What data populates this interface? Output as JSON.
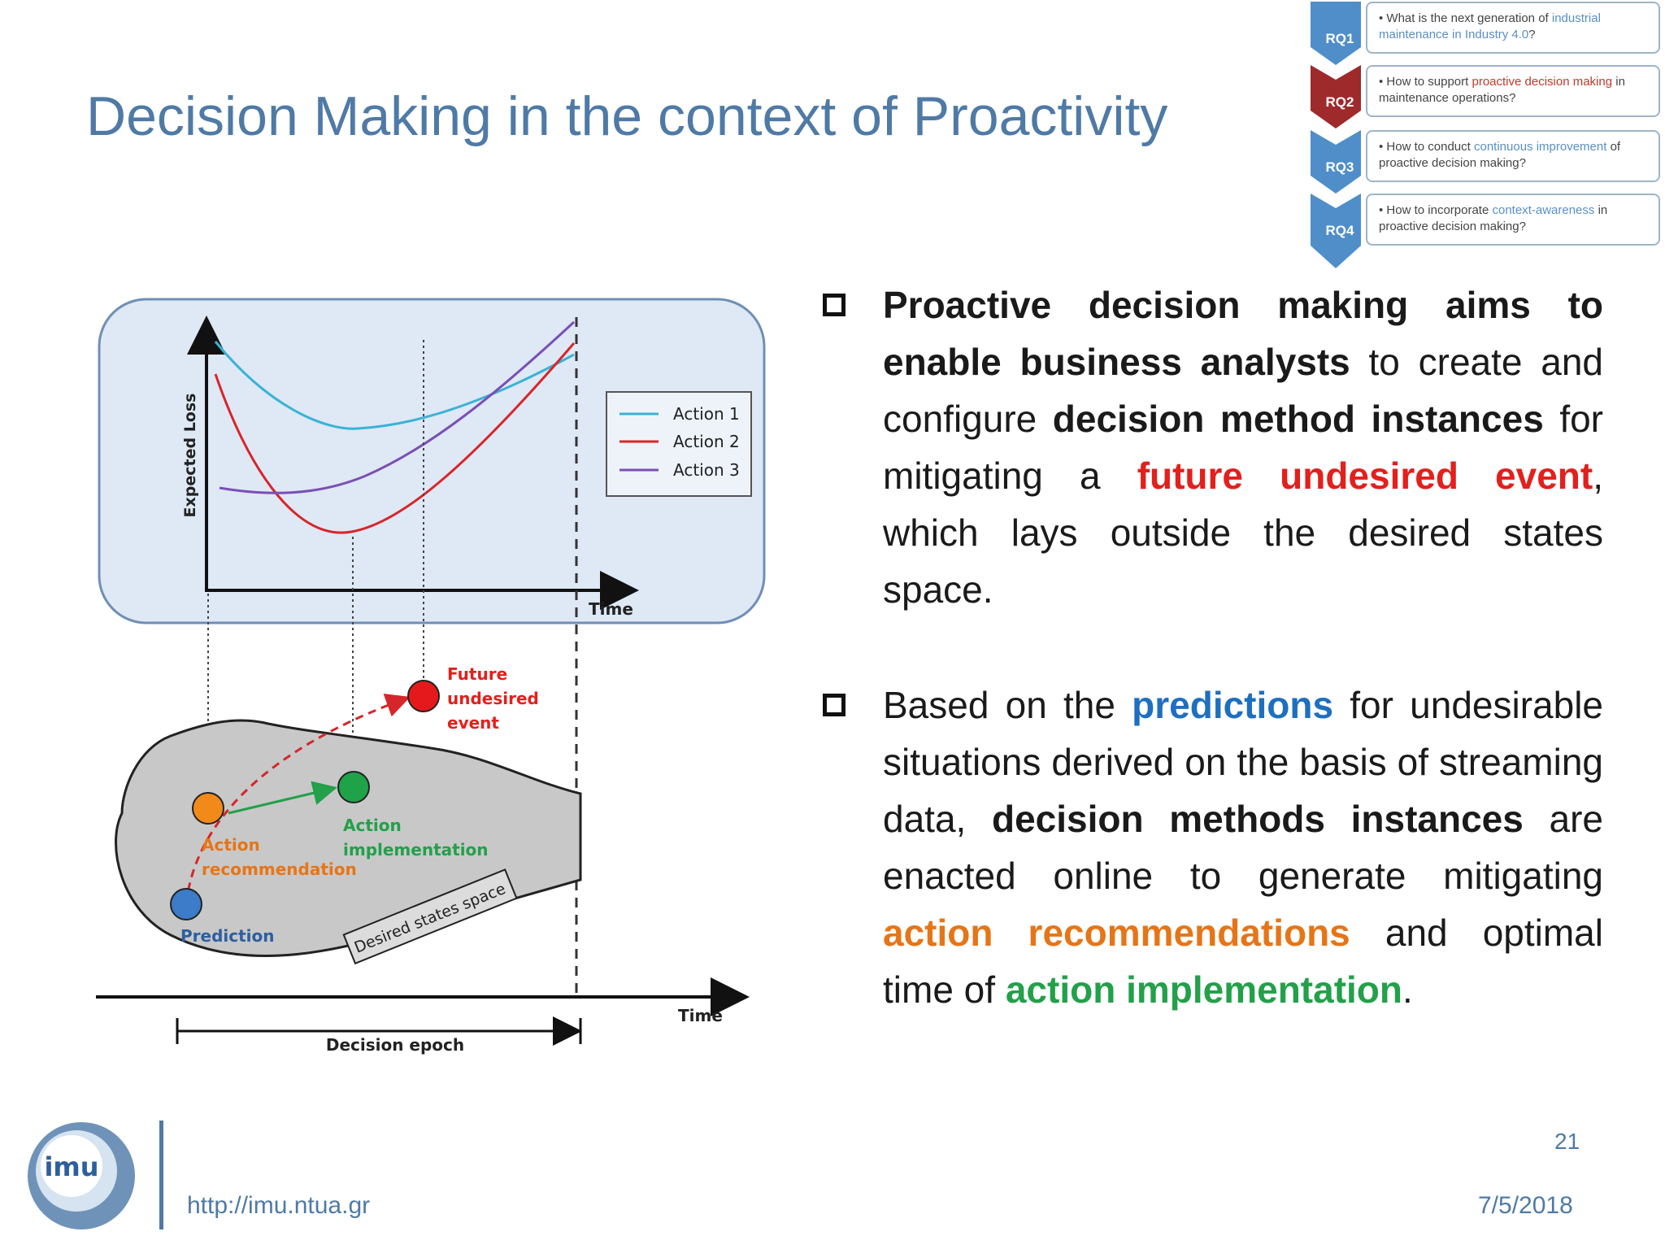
{
  "title": "Decision Making in the context of Proactivity",
  "rq_panel": {
    "items": [
      {
        "label": "RQ1",
        "text_plain": "What is the next generation of ",
        "text_hl": "industrial maintenance in Industry 4.0",
        "text_end": "?",
        "color": "#4f8ec9"
      },
      {
        "label": "RQ2",
        "text_plain": "How to support ",
        "text_hl": "proactive decision making",
        "text_end": " in maintenance operations?",
        "color": "#9e2a2b"
      },
      {
        "label": "RQ3",
        "text_plain": "How to conduct ",
        "text_hl": "continuous improvement",
        "text_end": " of proactive decision making?",
        "color": "#4f8ec9"
      },
      {
        "label": "RQ4",
        "text_plain": "How to incorporate ",
        "text_hl": "context-awareness",
        "text_end": " in proactive decision making?",
        "color": "#4f8ec9"
      }
    ]
  },
  "figure": {
    "top_chart": {
      "ylabel": "Expected Loss",
      "xlabel": "Time",
      "legend": [
        "Action 1",
        "Action 2",
        "Action 3"
      ],
      "legend_colors": [
        "#39b3d6",
        "#d6262b",
        "#7a4fb5"
      ]
    },
    "bottom": {
      "future_event": "Future undesired event",
      "future_line1": "Future",
      "future_line2": "undesired",
      "future_line3": "event",
      "action_impl_line1": "Action",
      "action_impl_line2": "implementation",
      "action_rec_line1": "Action",
      "action_rec_line2": "recommendation",
      "prediction": "Prediction",
      "desired_space": "Desired states space",
      "time": "Time",
      "decision_epoch": "Decision epoch"
    }
  },
  "bullets": {
    "b1": {
      "p1": "Proactive decision making aims to enable business analysts",
      "p2": " to create and configure ",
      "p3": "decision method instances",
      "p4": " for mitigating a ",
      "p5": "future undesired event",
      "p6": ", which lays outside the desired states space."
    },
    "b2": {
      "p1": "Based on the ",
      "p2": "predictions",
      "p3": " for undesirable situations derived on the basis of streaming data, ",
      "p4": "decision methods instances",
      "p5": " are enacted online to generate mitigating ",
      "p6": "action recommendations",
      "p7": " and optimal time of ",
      "p8": "action implementation",
      "p9": "."
    }
  },
  "footer": {
    "logo_text": "imu",
    "url": "http://imu.ntua.gr",
    "page_number": "21",
    "date": "7/5/2018"
  }
}
